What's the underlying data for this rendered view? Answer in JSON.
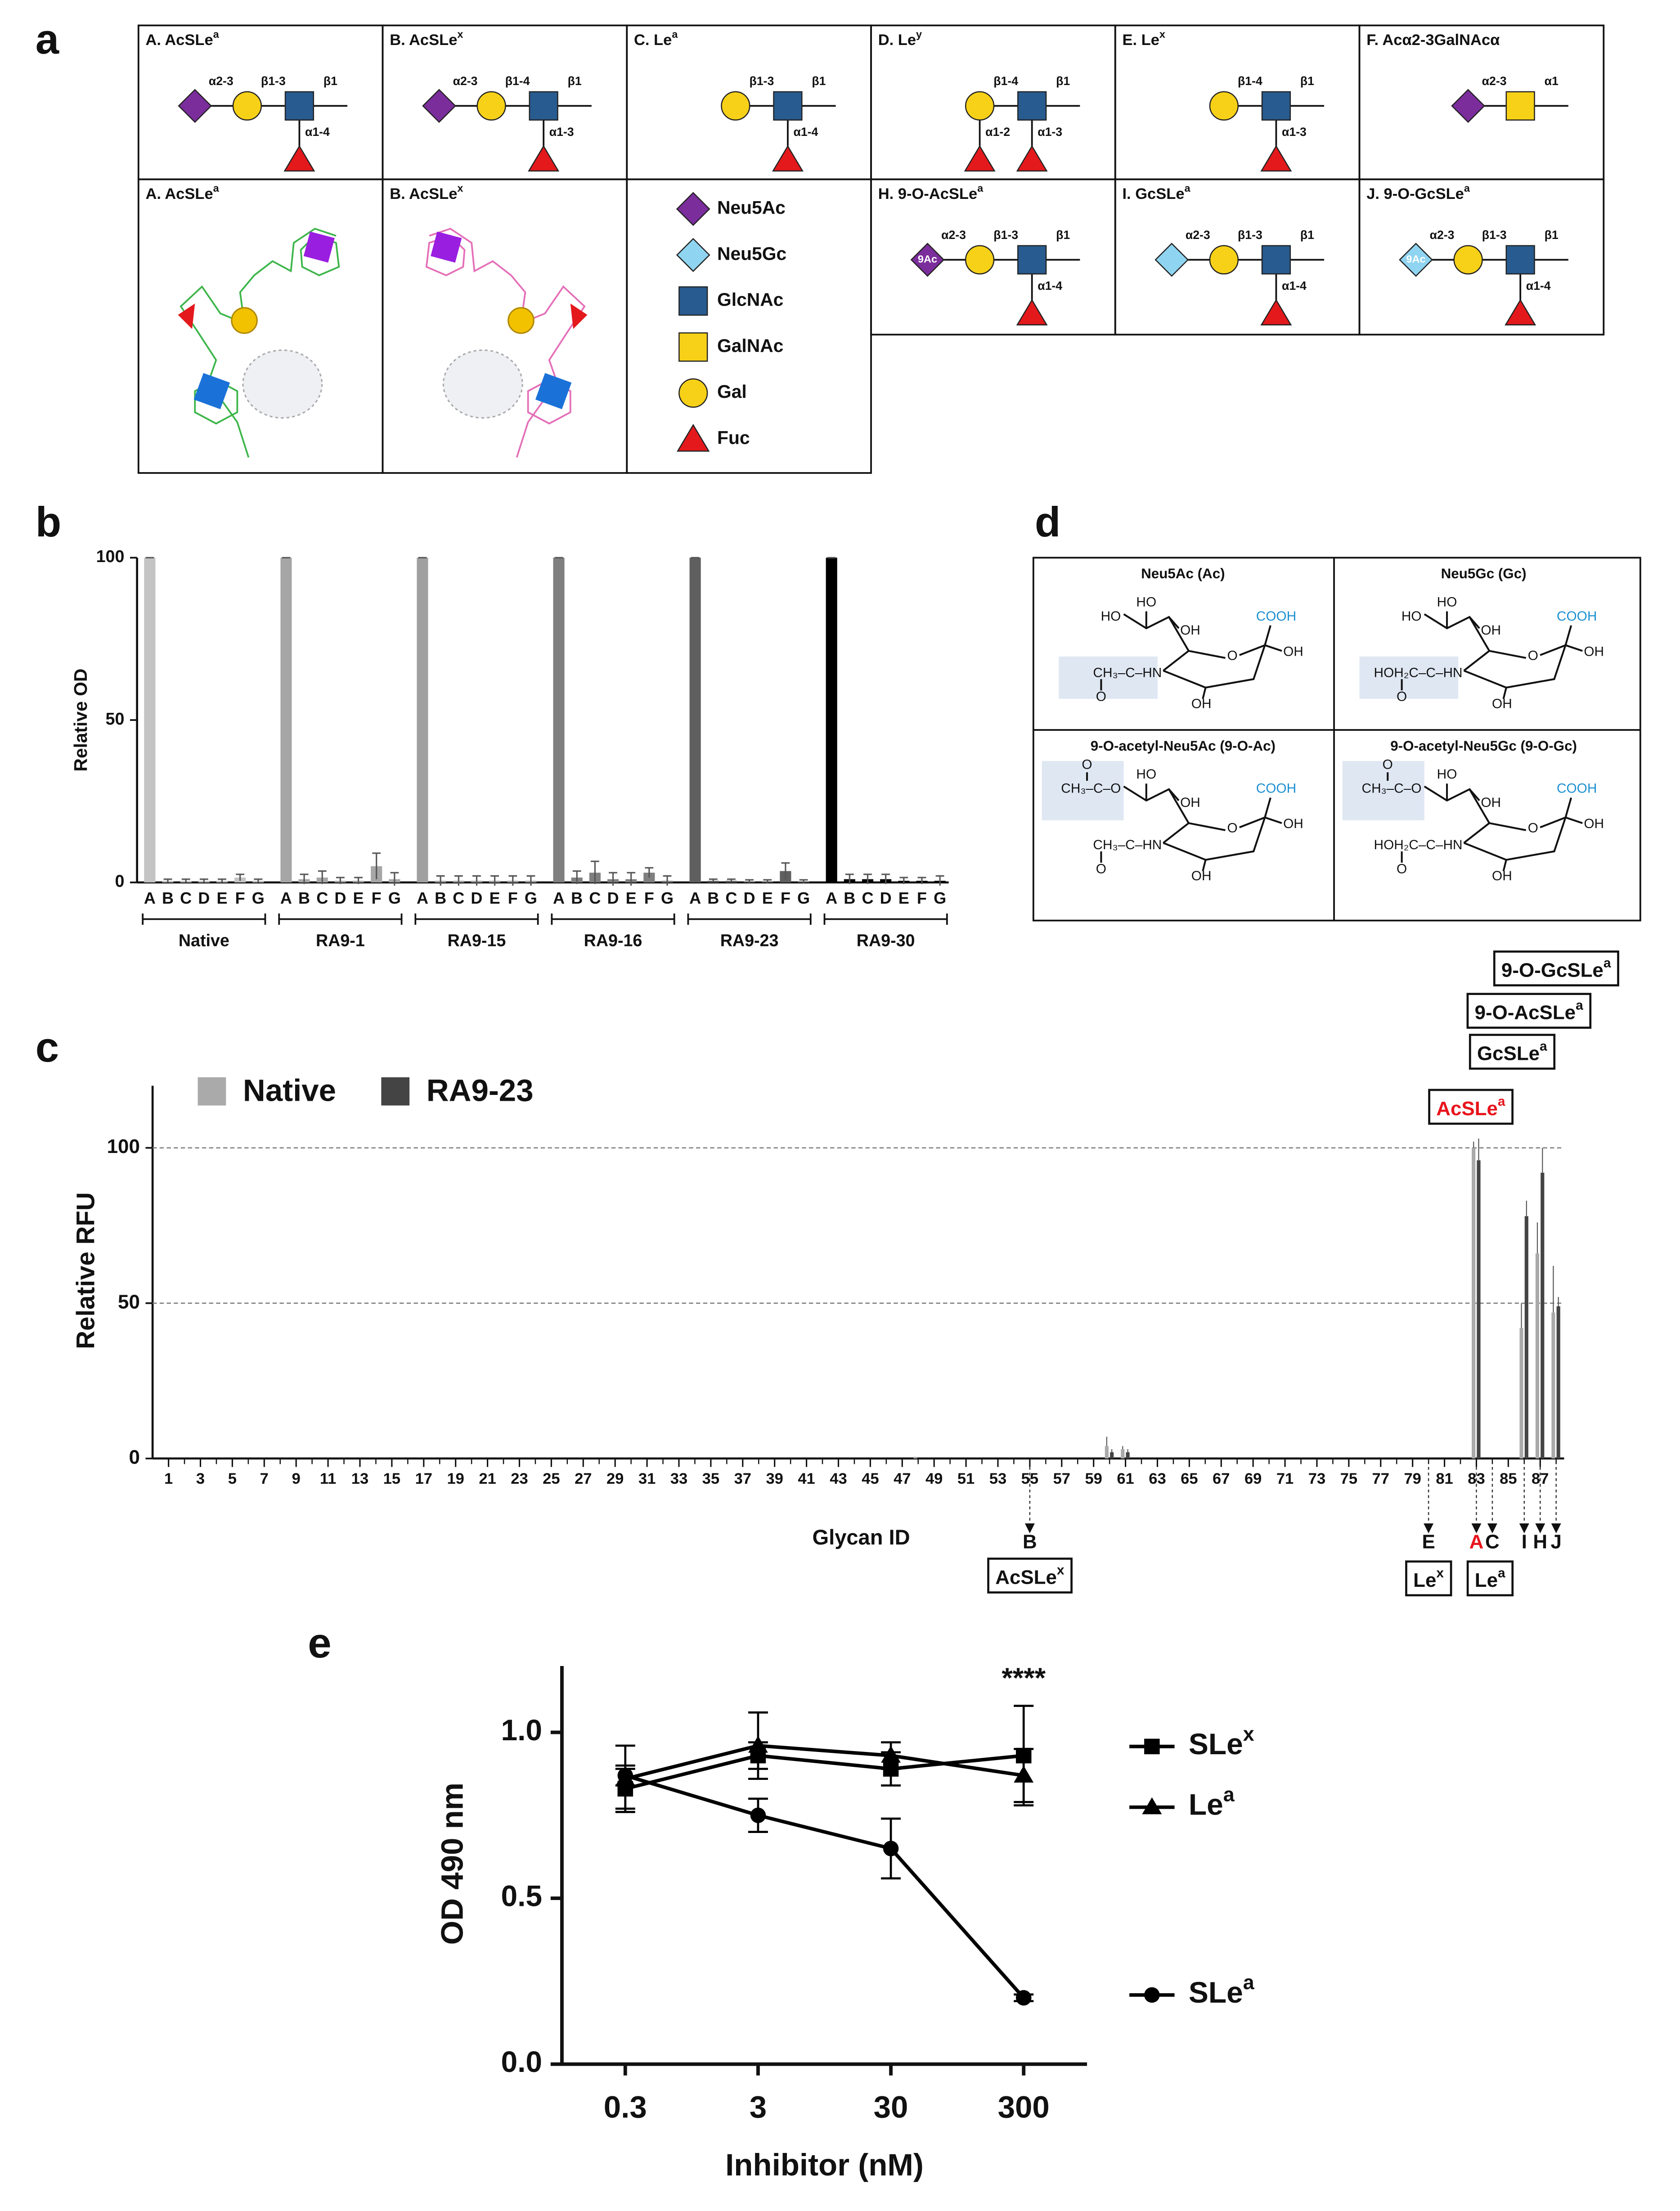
{
  "panel_labels": [
    "a",
    "b",
    "c",
    "d",
    "e"
  ],
  "panel_a": {
    "glycans": [
      {
        "title": "A. AcSLe",
        "sup": "a",
        "chain": [
          {
            "res": "Neu5Ac",
            "link": "α2-3"
          },
          {
            "res": "Gal",
            "link": "β1-3"
          },
          {
            "res": "GlcNAc",
            "link": "β1"
          }
        ],
        "branches": [
          {
            "at": 2,
            "res": "Fuc",
            "link": "α1-4"
          }
        ]
      },
      {
        "title": "B. AcSLe",
        "sup": "x",
        "chain": [
          {
            "res": "Neu5Ac",
            "link": "α2-3"
          },
          {
            "res": "Gal",
            "link": "β1-4"
          },
          {
            "res": "GlcNAc",
            "link": "β1"
          }
        ],
        "branches": [
          {
            "at": 2,
            "res": "Fuc",
            "link": "α1-3"
          }
        ]
      },
      {
        "title": "C. Le",
        "sup": "a",
        "chain": [
          {
            "res": "Gal",
            "link": "β1-3"
          },
          {
            "res": "GlcNAc",
            "link": "β1"
          }
        ],
        "branches": [
          {
            "at": 1,
            "res": "Fuc",
            "link": "α1-4"
          }
        ]
      },
      {
        "title": "D. Le",
        "sup": "y",
        "chain": [
          {
            "res": "Gal",
            "link": "β1-4"
          },
          {
            "res": "GlcNAc",
            "link": "β1"
          }
        ],
        "branches": [
          {
            "at": 0,
            "res": "Fuc",
            "link": "α1-2"
          },
          {
            "at": 1,
            "res": "Fuc",
            "link": "α1-3"
          }
        ]
      },
      {
        "title": "E. Le",
        "sup": "x",
        "chain": [
          {
            "res": "Gal",
            "link": "β1-4"
          },
          {
            "res": "GlcNAc",
            "link": "β1"
          }
        ],
        "branches": [
          {
            "at": 1,
            "res": "Fuc",
            "link": "α1-3"
          }
        ]
      },
      {
        "title": "F. Acα2-3GalNAcα",
        "chain": [
          {
            "res": "Neu5Ac",
            "link": "α2-3"
          },
          {
            "res": "GalNAc",
            "link": "α1"
          }
        ],
        "branches": []
      },
      {
        "title": "H. 9-O-AcSLe",
        "sup": "a",
        "chain": [
          {
            "res": "Neu5Ac",
            "mod": "9Ac",
            "link": "α2-3"
          },
          {
            "res": "Gal",
            "link": "β1-3"
          },
          {
            "res": "GlcNAc",
            "link": "β1"
          }
        ],
        "branches": [
          {
            "at": 2,
            "res": "Fuc",
            "link": "α1-4"
          }
        ]
      },
      {
        "title": "I. GcSLe",
        "sup": "a",
        "chain": [
          {
            "res": "Neu5Gc",
            "link": "α2-3"
          },
          {
            "res": "Gal",
            "link": "β1-3"
          },
          {
            "res": "GlcNAc",
            "link": "β1"
          }
        ],
        "branches": [
          {
            "at": 2,
            "res": "Fuc",
            "link": "α1-4"
          }
        ]
      },
      {
        "title": "J. 9-O-GcSLe",
        "sup": "a",
        "chain": [
          {
            "res": "Neu5Gc",
            "mod": "9Ac",
            "link": "α2-3"
          },
          {
            "res": "Gal",
            "link": "β1-3"
          },
          {
            "res": "GlcNAc",
            "link": "β1"
          }
        ],
        "branches": [
          {
            "at": 2,
            "res": "Fuc",
            "link": "α1-4"
          }
        ]
      }
    ],
    "structures": [
      {
        "title": "A. AcSLe",
        "sup": "a",
        "color": "#3db54a"
      },
      {
        "title": "B. AcSLe",
        "sup": "x",
        "color": "#e46fb8"
      }
    ],
    "legend": [
      {
        "name": "Neu5Ac",
        "shape": "diamond",
        "color": "#7b2d9c"
      },
      {
        "name": "Neu5Gc",
        "shape": "diamond",
        "color": "#8fd4f0"
      },
      {
        "name": "GlcNAc",
        "shape": "square",
        "color": "#285b8f"
      },
      {
        "name": "GalNAc",
        "shape": "square",
        "color": "#f7d117"
      },
      {
        "name": "Gal",
        "shape": "circle",
        "color": "#f7d117"
      },
      {
        "name": "Fuc",
        "shape": "triangle",
        "color": "#e3191c"
      }
    ]
  },
  "panel_d": {
    "structures": [
      {
        "title": "Neu5Ac (Ac)",
        "c9": "HO",
        "c8": "HO",
        "c7": "OH",
        "cooh": "COOH",
        "c2": "OH",
        "ring_o": "O",
        "amide": "CH₃–C–HN",
        "amide_o": "O",
        "c4": "OH"
      },
      {
        "title": "Neu5Gc (Gc)",
        "c9": "HO",
        "c8": "HO",
        "c7": "OH",
        "cooh": "COOH",
        "c2": "OH",
        "ring_o": "O",
        "amide": "HOH₂C–C–HN",
        "amide_o": "O",
        "c4": "OH"
      },
      {
        "title": "9-O-acetyl-Neu5Ac (9-O-Ac)",
        "c9": "CH₃–C–O",
        "ester_o": "O",
        "c8": "HO",
        "c7": "OH",
        "cooh": "COOH",
        "c2": "OH",
        "ring_o": "O",
        "amide": "CH₃–C–HN",
        "amide_o": "O",
        "c4": "OH"
      },
      {
        "title": "9-O-acetyl-Neu5Gc (9-O-Gc)",
        "c9": "CH₃–C–O",
        "ester_o": "O",
        "c8": "HO",
        "c7": "OH",
        "cooh": "COOH",
        "c2": "OH",
        "ring_o": "O",
        "amide": "HOH₂C–C–HN",
        "amide_o": "O",
        "c4": "OH"
      }
    ]
  },
  "chart_data": [
    {
      "type": "grouped-bar",
      "ylabel": "Relative OD",
      "ylim": [
        0,
        100
      ],
      "yticks": [
        0,
        50,
        100
      ],
      "categories": [
        "A",
        "B",
        "C",
        "D",
        "E",
        "F",
        "G"
      ],
      "series": [
        {
          "name": "Native",
          "color": "#c4c4c4",
          "values": [
            100,
            0.5,
            0.5,
            0.5,
            0.5,
            1.5,
            0.5
          ],
          "errors": [
            0,
            0.5,
            0.5,
            0.5,
            0.5,
            1,
            0.5
          ]
        },
        {
          "name": "RA9-1",
          "color": "#a6a6a6",
          "values": [
            100,
            1,
            1.5,
            0.5,
            0.5,
            5,
            1
          ],
          "errors": [
            0,
            1.5,
            2,
            1,
            1,
            4,
            2
          ]
        },
        {
          "name": "RA9-15",
          "color": "#a0a0a0",
          "values": [
            100,
            0.5,
            0.5,
            0.5,
            0.5,
            0.5,
            0.5
          ],
          "errors": [
            0,
            1.5,
            1.5,
            1.5,
            1.5,
            1.5,
            1.5
          ]
        },
        {
          "name": "RA9-16",
          "color": "#7f7f7f",
          "values": [
            100,
            1.5,
            3,
            1,
            1,
            3,
            0.5
          ],
          "errors": [
            0,
            2,
            3.5,
            2,
            2,
            1.5,
            1.5
          ]
        },
        {
          "name": "RA9-23",
          "color": "#5f5f5f",
          "values": [
            100,
            0.5,
            0.5,
            0.3,
            0.3,
            3.5,
            0.3
          ],
          "errors": [
            0,
            0.5,
            0.5,
            0.5,
            0.5,
            2.5,
            0.5
          ]
        },
        {
          "name": "RA9-30",
          "color": "#000000",
          "values": [
            100,
            1,
            1,
            1,
            0.5,
            0.5,
            0.5
          ],
          "errors": [
            0,
            1.5,
            1.5,
            1.5,
            1,
            1,
            1.5
          ]
        }
      ]
    },
    {
      "type": "bar",
      "ylabel": "Relative RFU",
      "xlabel": "Glycan ID",
      "xlim": [
        0,
        88.5
      ],
      "ylim": [
        0,
        120
      ],
      "yticks": [
        0,
        50,
        100
      ],
      "grid": true,
      "xticks": [
        1,
        3,
        5,
        7,
        9,
        11,
        13,
        15,
        17,
        19,
        21,
        23,
        25,
        27,
        29,
        31,
        33,
        35,
        37,
        39,
        41,
        43,
        45,
        47,
        49,
        51,
        53,
        55,
        57,
        59,
        61,
        63,
        65,
        67,
        69,
        71,
        73,
        75,
        77,
        79,
        81,
        83,
        85,
        87
      ],
      "x": [
        1,
        2,
        3,
        4,
        5,
        6,
        7,
        8,
        9,
        10,
        11,
        12,
        13,
        14,
        15,
        16,
        17,
        18,
        19,
        20,
        21,
        22,
        23,
        24,
        25,
        26,
        27,
        28,
        29,
        30,
        31,
        32,
        33,
        34,
        35,
        36,
        37,
        38,
        39,
        40,
        41,
        42,
        43,
        44,
        45,
        46,
        47,
        48,
        49,
        50,
        51,
        52,
        53,
        54,
        55,
        56,
        57,
        58,
        59,
        60,
        61,
        62,
        63,
        64,
        65,
        66,
        67,
        68,
        69,
        70,
        71,
        72,
        73,
        74,
        75,
        76,
        77,
        78,
        79,
        80,
        81,
        82,
        83,
        84,
        85,
        86,
        87,
        88
      ],
      "series": [
        {
          "name": "Native",
          "color": "#aaaaaa",
          "values": [
            0,
            0,
            0,
            0,
            0,
            0,
            0,
            0,
            0,
            0,
            0,
            0,
            0,
            0,
            0,
            0,
            0,
            0,
            0,
            0,
            0,
            0,
            0,
            0,
            0,
            0,
            0,
            0,
            0,
            0,
            0,
            0,
            0,
            0,
            0,
            0,
            0,
            0,
            0,
            0,
            0,
            0,
            0,
            0,
            0,
            0,
            0,
            0.5,
            0,
            0,
            0,
            0,
            0,
            0,
            0,
            0,
            0,
            0,
            0,
            4,
            3,
            0,
            0,
            0,
            0,
            0,
            0,
            0,
            0,
            0,
            0,
            0,
            0,
            0,
            0,
            0,
            0,
            0,
            0,
            0,
            0,
            0,
            100,
            0,
            0,
            42,
            66,
            47
          ],
          "errors": [
            0,
            0,
            0,
            0,
            0,
            0,
            0,
            0,
            0,
            0,
            0,
            0,
            0,
            0,
            0,
            0,
            0,
            0,
            0,
            0,
            0,
            0,
            0,
            0,
            0,
            0,
            0,
            0,
            0,
            0,
            0,
            0,
            0,
            0,
            0,
            0,
            0,
            0,
            0,
            0,
            0,
            0,
            0,
            0,
            0,
            0,
            0,
            0,
            0,
            0,
            0,
            0,
            0,
            0,
            0,
            0,
            0,
            0,
            0,
            3,
            1,
            0,
            0,
            0,
            0,
            0,
            0,
            0,
            0,
            0,
            0,
            0,
            0,
            0,
            0,
            0,
            0,
            0,
            0,
            0,
            0,
            0,
            2,
            0,
            0,
            8,
            10,
            15
          ]
        },
        {
          "name": "RA9-23",
          "color": "#444444",
          "values": [
            0,
            0,
            0,
            0,
            0,
            0,
            0,
            0,
            0,
            0,
            0,
            0,
            0,
            0,
            0,
            0,
            0,
            0,
            0,
            0,
            0,
            0,
            0,
            0,
            0,
            0,
            0,
            0,
            0,
            0,
            0,
            0,
            0,
            0,
            0,
            0,
            0,
            0,
            0,
            0,
            0,
            0,
            0,
            0,
            0,
            0,
            0,
            0,
            0,
            0,
            0,
            0,
            0,
            0,
            0,
            0,
            0,
            0,
            0,
            2,
            2,
            0,
            0,
            0,
            0,
            0,
            0,
            0,
            0,
            0,
            0,
            0,
            0,
            0,
            0,
            0,
            0,
            0,
            0,
            0,
            0,
            0,
            96,
            0,
            0,
            78,
            92,
            49
          ],
          "errors": [
            0,
            0,
            0,
            0,
            0,
            0,
            0,
            0,
            0,
            0,
            0,
            0,
            0,
            0,
            0,
            0,
            0,
            0,
            0,
            0,
            0,
            0,
            0,
            0,
            0,
            0,
            0,
            0,
            0,
            0,
            0,
            0,
            0,
            0,
            0,
            0,
            0,
            0,
            0,
            0,
            0,
            0,
            0,
            0,
            0,
            0,
            0,
            0,
            0,
            0,
            0,
            0,
            0,
            0,
            0,
            0,
            0,
            0,
            0,
            1,
            1,
            0,
            0,
            0,
            0,
            0,
            0,
            0,
            0,
            0,
            0,
            0,
            0,
            0,
            0,
            0,
            0,
            0,
            0,
            0,
            0,
            0,
            7,
            0,
            0,
            5,
            8,
            3
          ]
        }
      ],
      "arrows": [
        {
          "x": 55,
          "label": "B"
        },
        {
          "x": 80,
          "label": "E"
        },
        {
          "x": 83,
          "label": "A",
          "color": "#e8141c"
        },
        {
          "x": 84,
          "label": "C"
        },
        {
          "x": 86,
          "label": "I"
        },
        {
          "x": 87,
          "label": "H"
        },
        {
          "x": 88,
          "label": "J"
        }
      ],
      "bottom_boxes": [
        {
          "text": "AcSLe",
          "sup": "x"
        },
        {
          "text": "Le",
          "sup": "x"
        },
        {
          "text": "Le",
          "sup": "a"
        }
      ],
      "top_boxes": [
        {
          "text": "AcSLe",
          "sup": "a",
          "color": "#e8141c"
        },
        {
          "text": "GcSLe",
          "sup": "a"
        },
        {
          "text": "9-O-AcSLe",
          "sup": "a"
        },
        {
          "text": "9-O-GcSLe",
          "sup": "a"
        }
      ]
    },
    {
      "type": "line",
      "xlabel": "Inhibitor (nM)",
      "ylabel": "OD 490 nm",
      "xscale": "log",
      "xlim": [
        0.1,
        900
      ],
      "xticks": [
        0.3,
        3,
        30,
        300
      ],
      "ylim": [
        0,
        1.2
      ],
      "yticks": [
        {
          "value": 0,
          "label": "0.0"
        },
        {
          "value": 0.5,
          "label": "0.5"
        },
        {
          "value": 1,
          "label": "1.0"
        }
      ],
      "x": [
        0.3,
        3,
        30,
        300
      ],
      "annotation": "****",
      "series": [
        {
          "name": "SLe",
          "name_sup": "x",
          "marker": "square",
          "color": "#000000",
          "values": [
            0.83,
            0.93,
            0.89,
            0.93
          ],
          "errors": [
            0.06,
            0.04,
            0.05,
            0.15
          ]
        },
        {
          "name": "Le",
          "name_sup": "a",
          "marker": "triangle",
          "color": "#000000",
          "values": [
            0.86,
            0.96,
            0.93,
            0.87
          ],
          "errors": [
            0.1,
            0.1,
            0.04,
            0.08
          ]
        },
        {
          "name": "SLe",
          "name_sup": "a",
          "marker": "circle",
          "color": "#000000",
          "values": [
            0.87,
            0.75,
            0.65,
            0.2
          ],
          "errors": [
            0.03,
            0.05,
            0.09,
            0.01
          ]
        }
      ]
    }
  ]
}
